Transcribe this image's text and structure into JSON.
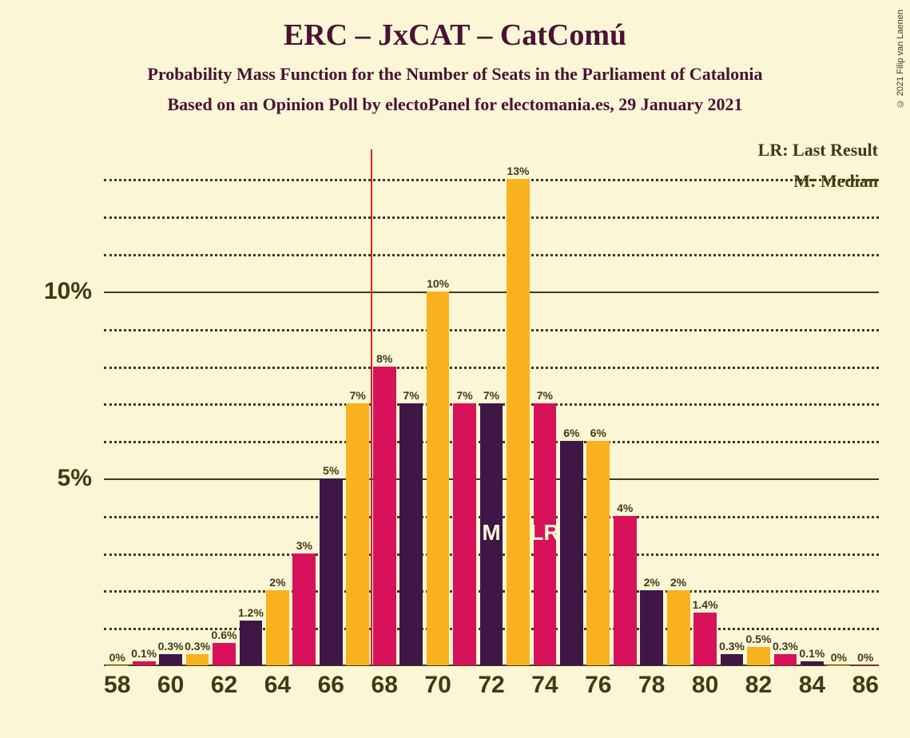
{
  "title": "ERC – JxCAT – CatComú",
  "subtitle1": "Probability Mass Function for the Number of Seats in the Parliament of Catalonia",
  "subtitle2": "Based on an Opinion Poll by electoPanel for electomania.es, 29 January 2021",
  "legend_lr": "LR: Last Result",
  "legend_m": "M: Median",
  "copyright": "© 2021 Filip van Laenen",
  "chart": {
    "type": "bar",
    "background_color": "#faf6d6",
    "text_color": "#4a1233",
    "axis_color": "#413a16",
    "grid_color": "#413a16",
    "bar_colors": [
      "#f8b21f",
      "#d8125a",
      "#3e1746"
    ],
    "ylim": [
      0,
      13.8
    ],
    "ytick_major": [
      5,
      10
    ],
    "ytick_minor_step": 1,
    "x_start": 58,
    "x_end": 86,
    "x_tick_step": 2,
    "bar_width_ratio": 0.86,
    "vline_at": 67.5,
    "vline_color": "#e02020",
    "median_bar": 72,
    "last_result_bar": 74,
    "bars": [
      {
        "x": 58,
        "value": 0,
        "label": "0%"
      },
      {
        "x": 59,
        "value": 0.1,
        "label": "0.1%"
      },
      {
        "x": 60,
        "value": 0.3,
        "label": "0.3%"
      },
      {
        "x": 61,
        "value": 0.3,
        "label": "0.3%"
      },
      {
        "x": 62,
        "value": 0.6,
        "label": "0.6%"
      },
      {
        "x": 63,
        "value": 1.2,
        "label": "1.2%"
      },
      {
        "x": 64,
        "value": 2,
        "label": "2%"
      },
      {
        "x": 65,
        "value": 3,
        "label": "3%"
      },
      {
        "x": 66,
        "value": 5,
        "label": "5%"
      },
      {
        "x": 67,
        "value": 7,
        "label": "7%"
      },
      {
        "x": 68,
        "value": 8,
        "label": "8%"
      },
      {
        "x": 69,
        "value": 7,
        "label": "7%"
      },
      {
        "x": 70,
        "value": 10,
        "label": "10%"
      },
      {
        "x": 71,
        "value": 7,
        "label": "7%"
      },
      {
        "x": 72,
        "value": 7,
        "label": "7%"
      },
      {
        "x": 73,
        "value": 13,
        "label": "13%"
      },
      {
        "x": 74,
        "value": 7,
        "label": "7%"
      },
      {
        "x": 75,
        "value": 6,
        "label": "6%"
      },
      {
        "x": 76,
        "value": 6,
        "label": "6%"
      },
      {
        "x": 77,
        "value": 4,
        "label": "4%"
      },
      {
        "x": 78,
        "value": 2,
        "label": "2%"
      },
      {
        "x": 79,
        "value": 2,
        "label": "2%"
      },
      {
        "x": 80,
        "value": 1.4,
        "label": "1.4%"
      },
      {
        "x": 81,
        "value": 0.3,
        "label": "0.3%"
      },
      {
        "x": 82,
        "value": 0.5,
        "label": "0.5%"
      },
      {
        "x": 83,
        "value": 0.3,
        "label": "0.3%"
      },
      {
        "x": 84,
        "value": 0.1,
        "label": "0.1%"
      },
      {
        "x": 85,
        "value": 0,
        "label": "0%"
      },
      {
        "x": 86,
        "value": 0,
        "label": "0%"
      }
    ]
  }
}
